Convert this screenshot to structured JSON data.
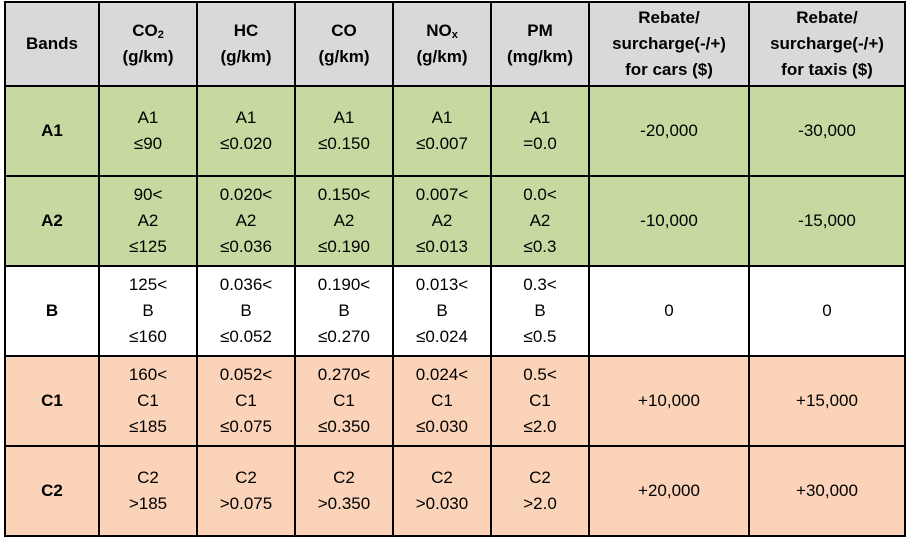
{
  "headers": {
    "bands": "Bands",
    "co2": {
      "base": "CO",
      "sub": "2",
      "unit": "(g/km)"
    },
    "hc": {
      "line1": "HC",
      "unit": "(g/km)"
    },
    "co": {
      "line1": "CO",
      "unit": "(g/km)"
    },
    "nox": {
      "base": "NO",
      "sub": "x",
      "unit": "(g/km)"
    },
    "pm": {
      "line1": "PM",
      "unit": "(mg/km)"
    },
    "rebate_cars": {
      "line1": "Rebate/",
      "line2": "surcharge(-/+)",
      "line3": "for cars ($)"
    },
    "rebate_taxis": {
      "line1": "Rebate/",
      "line2": "surcharge(-/+)",
      "line3": "for taxis ($)"
    }
  },
  "rows": [
    {
      "band": "A1",
      "co2": [
        "A1",
        "≤90"
      ],
      "hc": [
        "A1",
        "≤0.020"
      ],
      "co": [
        "A1",
        "≤0.150"
      ],
      "nox": [
        "A1",
        "≤0.007"
      ],
      "pm": [
        "A1",
        "=0.0"
      ],
      "cars": "-20,000",
      "taxis": "-30,000"
    },
    {
      "band": "A2",
      "co2": [
        "90<",
        "A2",
        "≤125"
      ],
      "hc": [
        "0.020<",
        "A2",
        "≤0.036"
      ],
      "co": [
        "0.150<",
        "A2",
        "≤0.190"
      ],
      "nox": [
        "0.007<",
        "A2",
        "≤0.013"
      ],
      "pm": [
        "0.0<",
        "A2",
        "≤0.3"
      ],
      "cars": "-10,000",
      "taxis": "-15,000"
    },
    {
      "band": "B",
      "co2": [
        "125<",
        "B",
        "≤160"
      ],
      "hc": [
        "0.036<",
        "B",
        "≤0.052"
      ],
      "co": [
        "0.190<",
        "B",
        "≤0.270"
      ],
      "nox": [
        "0.013<",
        "B",
        "≤0.024"
      ],
      "pm": [
        "0.3<",
        "B",
        "≤0.5"
      ],
      "cars": "0",
      "taxis": "0"
    },
    {
      "band": "C1",
      "co2": [
        "160<",
        "C1",
        "≤185"
      ],
      "hc": [
        "0.052<",
        "C1",
        "≤0.075"
      ],
      "co": [
        "0.270<",
        "C1",
        "≤0.350"
      ],
      "nox": [
        "0.024<",
        "C1",
        "≤0.030"
      ],
      "pm": [
        "0.5<",
        "C1",
        "≤2.0"
      ],
      "cars": "+10,000",
      "taxis": "+15,000"
    },
    {
      "band": "C2",
      "co2": [
        "C2",
        ">185"
      ],
      "hc": [
        "C2",
        ">0.075"
      ],
      "co": [
        "C2",
        ">0.350"
      ],
      "nox": [
        "C2",
        ">0.030"
      ],
      "pm": [
        "C2",
        ">2.0"
      ],
      "cars": "+20,000",
      "taxis": "+30,000"
    }
  ],
  "colors": {
    "header": "#d9d9d9",
    "band_a": "#c5d9a1",
    "band_b": "#ffffff",
    "band_c": "#fad3b9"
  }
}
